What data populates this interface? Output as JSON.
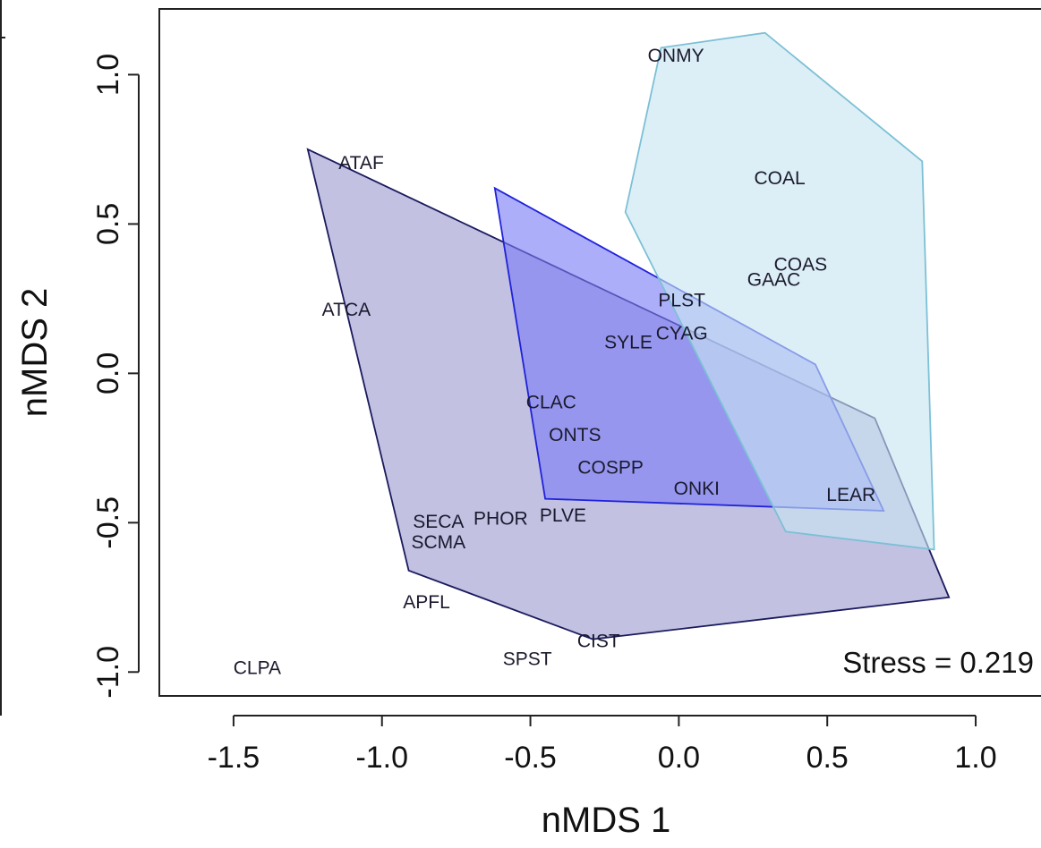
{
  "chart_data": {
    "type": "scatter",
    "xlabel": "nMDS 1",
    "ylabel": "nMDS 2",
    "xlim": [
      -1.75,
      1.22
    ],
    "ylim": [
      -1.08,
      1.22
    ],
    "xticks": [
      -1.5,
      -1.0,
      -0.5,
      0.0,
      0.5,
      1.0
    ],
    "xtick_labels": [
      "-1.5",
      "-1.0",
      "-0.5",
      "0.0",
      "0.5",
      "1.0"
    ],
    "yticks": [
      -1.0,
      -0.5,
      0.0,
      0.5,
      1.0
    ],
    "ytick_labels": [
      "-1.0",
      "-0.5",
      "0.0",
      "0.5",
      "1.0"
    ],
    "annotation": "Stress = 0.219",
    "grid": false,
    "points": [
      {
        "label": "ONMY",
        "x": -0.01,
        "y": 1.06
      },
      {
        "label": "COAL",
        "x": 0.34,
        "y": 0.65
      },
      {
        "label": "COAS",
        "x": 0.41,
        "y": 0.36
      },
      {
        "label": "GAAC",
        "x": 0.32,
        "y": 0.31
      },
      {
        "label": "PLST",
        "x": 0.01,
        "y": 0.24
      },
      {
        "label": "CYAG",
        "x": 0.01,
        "y": 0.13
      },
      {
        "label": "SYLE",
        "x": -0.17,
        "y": 0.1
      },
      {
        "label": "ATAF",
        "x": -1.07,
        "y": 0.7
      },
      {
        "label": "ATCA",
        "x": -1.12,
        "y": 0.21
      },
      {
        "label": "CLAC",
        "x": -0.43,
        "y": -0.1
      },
      {
        "label": "ONTS",
        "x": -0.35,
        "y": -0.21
      },
      {
        "label": "COSPP",
        "x": -0.23,
        "y": -0.32
      },
      {
        "label": "ONKI",
        "x": 0.06,
        "y": -0.39
      },
      {
        "label": "LEAR",
        "x": 0.58,
        "y": -0.41
      },
      {
        "label": "SECA",
        "x": -0.81,
        "y": -0.5
      },
      {
        "label": "PHOR",
        "x": -0.6,
        "y": -0.49
      },
      {
        "label": "PLVE",
        "x": -0.39,
        "y": -0.48
      },
      {
        "label": "SCMA",
        "x": -0.81,
        "y": -0.57
      },
      {
        "label": "APFL",
        "x": -0.85,
        "y": -0.77
      },
      {
        "label": "CIST",
        "x": -0.27,
        "y": -0.9
      },
      {
        "label": "SPST",
        "x": -0.51,
        "y": -0.96
      },
      {
        "label": "CLPA",
        "x": -1.42,
        "y": -0.99
      }
    ],
    "hulls": [
      {
        "fill": "#9d9bd1",
        "stroke": "#1a1a5e",
        "vertices": [
          [
            -1.25,
            0.75
          ],
          [
            0.66,
            -0.15
          ],
          [
            0.91,
            -0.75
          ],
          [
            -0.29,
            -0.89
          ],
          [
            -0.91,
            -0.66
          ]
        ]
      },
      {
        "fill": "#7b7cf6",
        "stroke": "#1f22d9",
        "vertices": [
          [
            -0.62,
            0.62
          ],
          [
            0.46,
            0.03
          ],
          [
            0.69,
            -0.46
          ],
          [
            -0.45,
            -0.42
          ]
        ]
      },
      {
        "fill": "#c8e5f0",
        "stroke": "#7cc0d6",
        "vertices": [
          [
            -0.06,
            1.09
          ],
          [
            0.29,
            1.14
          ],
          [
            0.82,
            0.71
          ],
          [
            0.86,
            -0.59
          ],
          [
            0.36,
            -0.53
          ],
          [
            -0.18,
            0.54
          ]
        ]
      }
    ]
  }
}
